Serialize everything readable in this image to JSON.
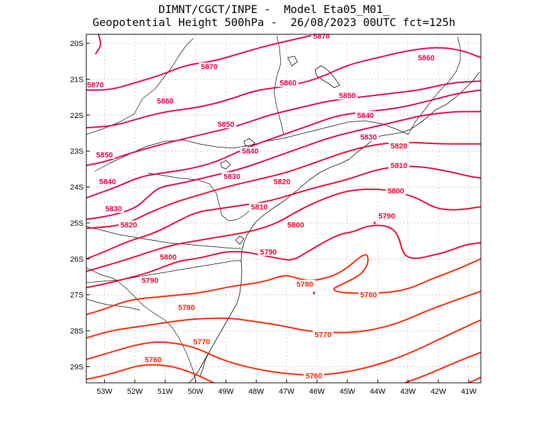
{
  "title": {
    "line1": "DIMNT/CGCT/INPE -  Model Eta05_M01_",
    "line2": "Geopotential Height 500hPa -  26/08/2023 00UTC fct=125h"
  },
  "axes": {
    "lat_labels": [
      "20S",
      "21S",
      "22S",
      "23S",
      "24S",
      "25S",
      "26S",
      "27S",
      "28S",
      "29S"
    ],
    "lon_labels": [
      "53W",
      "52W",
      "51W",
      "50W",
      "49W",
      "48W",
      "47W",
      "46W",
      "45W",
      "44W",
      "43W",
      "42W",
      "41W"
    ]
  },
  "colors": {
    "high": "#e6004c",
    "mid": "#f00030",
    "low": "#ff2200",
    "coast": "#000000",
    "grid": "#9a9a9a"
  },
  "chart_data": {
    "type": "contour",
    "variable": "Geopotential Height 500hPa",
    "lon_range": [
      -53.6,
      -40.6
    ],
    "lat_range": [
      -29.45,
      -19.75
    ],
    "grid": true,
    "levels": [
      5760,
      5770,
      5780,
      5790,
      5800,
      5810,
      5820,
      5830,
      5840,
      5850,
      5860,
      5870
    ],
    "contours": [
      {
        "level": 5870,
        "points": [
          [
            -53.6,
            -21.3
          ],
          [
            -52.8,
            -21.3
          ],
          [
            -52.0,
            -21.1
          ],
          [
            -51.2,
            -20.9
          ],
          [
            -50.3,
            -20.6
          ],
          [
            -49.4,
            -20.5
          ],
          [
            -48.6,
            -20.3
          ],
          [
            -47.8,
            -20.1
          ],
          [
            -46.8,
            -19.9
          ],
          [
            -46.0,
            -19.75
          ]
        ]
      },
      {
        "level": 5870,
        "points": [
          [
            -53.2,
            -19.75
          ],
          [
            -53.1,
            -20.05
          ],
          [
            -53.3,
            -20.3
          ]
        ]
      },
      {
        "level": 5860,
        "points": [
          [
            -53.6,
            -22.35
          ],
          [
            -52.7,
            -22.3
          ],
          [
            -51.9,
            -22.1
          ],
          [
            -51.0,
            -21.9
          ],
          [
            -50.0,
            -21.8
          ],
          [
            -49.0,
            -21.6
          ],
          [
            -48.0,
            -21.3
          ],
          [
            -47.0,
            -21.2
          ],
          [
            -46.0,
            -21.0
          ],
          [
            -45.0,
            -20.6
          ],
          [
            -44.0,
            -20.4
          ],
          [
            -43.0,
            -20.2
          ],
          [
            -42.0,
            -20.1
          ],
          [
            -41.2,
            -20.2
          ],
          [
            -40.6,
            -20.4
          ]
        ]
      },
      {
        "level": 5850,
        "points": [
          [
            -53.6,
            -23.4
          ],
          [
            -53.0,
            -23.3
          ],
          [
            -52.3,
            -23.1
          ],
          [
            -51.5,
            -22.9
          ],
          [
            -50.6,
            -22.7
          ],
          [
            -49.6,
            -22.5
          ],
          [
            -48.6,
            -22.3
          ],
          [
            -47.6,
            -22.0
          ],
          [
            -46.6,
            -21.8
          ],
          [
            -45.6,
            -21.6
          ],
          [
            -44.6,
            -21.5
          ],
          [
            -43.6,
            -21.4
          ],
          [
            -42.6,
            -21.3
          ],
          [
            -41.6,
            -21.1
          ],
          [
            -40.6,
            -21.05
          ]
        ]
      },
      {
        "level": 5840,
        "points": [
          [
            -53.6,
            -24.3
          ],
          [
            -52.6,
            -24.0
          ],
          [
            -51.8,
            -23.7
          ],
          [
            -51.0,
            -23.6
          ],
          [
            -50.2,
            -23.5
          ],
          [
            -49.3,
            -23.3
          ],
          [
            -48.3,
            -22.9
          ],
          [
            -47.3,
            -22.6
          ],
          [
            -46.3,
            -22.3
          ],
          [
            -45.3,
            -22.0
          ],
          [
            -44.3,
            -21.9
          ],
          [
            -43.3,
            -21.8
          ],
          [
            -42.3,
            -21.6
          ],
          [
            -41.4,
            -21.4
          ],
          [
            -40.6,
            -21.3
          ]
        ]
      },
      {
        "level": 5830,
        "points": [
          [
            -53.6,
            -24.9
          ],
          [
            -52.8,
            -24.8
          ],
          [
            -52.0,
            -24.6
          ],
          [
            -51.6,
            -24.3
          ],
          [
            -51.2,
            -24.0
          ],
          [
            -50.5,
            -23.9
          ],
          [
            -49.5,
            -23.7
          ],
          [
            -48.5,
            -23.5
          ],
          [
            -47.5,
            -23.2
          ],
          [
            -46.5,
            -22.9
          ],
          [
            -45.5,
            -22.6
          ],
          [
            -44.5,
            -22.4
          ],
          [
            -43.5,
            -22.2
          ],
          [
            -42.5,
            -22.0
          ],
          [
            -41.5,
            -21.9
          ],
          [
            -40.6,
            -21.9
          ]
        ]
      },
      {
        "level": 5820,
        "points": [
          [
            -53.6,
            -25.15
          ],
          [
            -52.8,
            -25.1
          ],
          [
            -52.2,
            -25.0
          ],
          [
            -51.5,
            -24.7
          ],
          [
            -50.6,
            -24.4
          ],
          [
            -49.8,
            -24.2
          ],
          [
            -49.0,
            -24.0
          ],
          [
            -48.0,
            -23.8
          ],
          [
            -47.0,
            -23.6
          ],
          [
            -46.0,
            -23.3
          ],
          [
            -45.0,
            -23.0
          ],
          [
            -44.0,
            -22.8
          ],
          [
            -43.0,
            -22.75
          ],
          [
            -42.0,
            -22.8
          ],
          [
            -41.0,
            -22.8
          ],
          [
            -40.6,
            -22.8
          ]
        ]
      },
      {
        "level": 5810,
        "points": [
          [
            -53.6,
            -26.0
          ],
          [
            -53.0,
            -25.8
          ],
          [
            -52.2,
            -25.5
          ],
          [
            -51.4,
            -25.3
          ],
          [
            -50.7,
            -25.0
          ],
          [
            -50.0,
            -24.7
          ],
          [
            -49.2,
            -24.6
          ],
          [
            -48.4,
            -24.5
          ],
          [
            -47.6,
            -24.4
          ],
          [
            -46.8,
            -24.2
          ],
          [
            -46.0,
            -24.0
          ],
          [
            -45.0,
            -23.8
          ],
          [
            -44.0,
            -23.5
          ],
          [
            -43.0,
            -23.4
          ],
          [
            -42.0,
            -23.5
          ],
          [
            -41.0,
            -23.7
          ],
          [
            -40.6,
            -23.75
          ]
        ]
      },
      {
        "level": 5800,
        "points": [
          [
            -53.6,
            -26.35
          ],
          [
            -53.0,
            -26.2
          ],
          [
            -52.2,
            -26.0
          ],
          [
            -51.5,
            -25.8
          ],
          [
            -50.7,
            -25.6
          ],
          [
            -50.0,
            -25.5
          ],
          [
            -49.3,
            -25.4
          ],
          [
            -48.6,
            -25.3
          ],
          [
            -48.0,
            -25.2
          ],
          [
            -47.3,
            -25.0
          ],
          [
            -46.5,
            -24.6
          ],
          [
            -45.7,
            -24.3
          ],
          [
            -45.0,
            -24.1
          ],
          [
            -44.2,
            -24.05
          ],
          [
            -43.5,
            -24.1
          ],
          [
            -42.7,
            -24.3
          ],
          [
            -42.1,
            -24.6
          ],
          [
            -41.4,
            -24.65
          ],
          [
            -40.6,
            -24.55
          ]
        ]
      },
      {
        "level": 5790,
        "points": [
          [
            -53.6,
            -26.8
          ],
          [
            -53.0,
            -26.7
          ],
          [
            -52.3,
            -26.55
          ],
          [
            -51.6,
            -26.4
          ],
          [
            -51.0,
            -26.2
          ],
          [
            -50.5,
            -26.05
          ],
          [
            -50.0,
            -26.0
          ],
          [
            -49.5,
            -25.9
          ],
          [
            -49.0,
            -25.8
          ],
          [
            -48.4,
            -25.8
          ],
          [
            -47.8,
            -25.9
          ],
          [
            -47.2,
            -26.0
          ],
          [
            -46.8,
            -26.05
          ],
          [
            -46.3,
            -25.8
          ],
          [
            -45.7,
            -25.5
          ],
          [
            -45.2,
            -25.3
          ],
          [
            -44.8,
            -25.25
          ],
          [
            -44.4,
            -25.1
          ],
          [
            -43.9,
            -25.05
          ],
          [
            -43.5,
            -25.15
          ],
          [
            -43.3,
            -25.4
          ],
          [
            -43.2,
            -25.75
          ],
          [
            -43.05,
            -25.95
          ],
          [
            -42.7,
            -26.0
          ],
          [
            -42.2,
            -25.9
          ],
          [
            -41.7,
            -25.8
          ],
          [
            -41.1,
            -25.6
          ],
          [
            -40.6,
            -25.55
          ]
        ]
      },
      {
        "level": 5780,
        "points": [
          [
            -53.6,
            -27.55
          ],
          [
            -53.0,
            -27.4
          ],
          [
            -52.4,
            -27.2
          ],
          [
            -51.8,
            -27.1
          ],
          [
            -51.1,
            -27.05
          ],
          [
            -50.5,
            -27.0
          ],
          [
            -49.9,
            -26.95
          ],
          [
            -49.3,
            -26.85
          ],
          [
            -48.7,
            -26.75
          ],
          [
            -48.2,
            -26.7
          ],
          [
            -47.6,
            -26.6
          ],
          [
            -47.1,
            -26.45
          ],
          [
            -46.8,
            -26.5
          ],
          [
            -46.4,
            -26.6
          ],
          [
            -46.1,
            -26.6
          ],
          [
            -45.8,
            -26.55
          ],
          [
            -45.4,
            -26.45
          ],
          [
            -45.0,
            -26.25
          ],
          [
            -44.6,
            -25.95
          ],
          [
            -44.35,
            -25.85
          ],
          [
            -44.3,
            -26.1
          ],
          [
            -44.5,
            -26.4
          ],
          [
            -44.9,
            -26.6
          ],
          [
            -45.3,
            -26.75
          ],
          [
            -45.5,
            -26.85
          ],
          [
            -45.2,
            -26.95
          ],
          [
            -44.5,
            -26.95
          ],
          [
            -43.8,
            -26.95
          ],
          [
            -43.0,
            -26.85
          ],
          [
            -42.2,
            -26.55
          ],
          [
            -41.4,
            -26.3
          ],
          [
            -40.6,
            -26.0
          ]
        ]
      },
      {
        "level": 5770,
        "points": [
          [
            -53.6,
            -28.2
          ],
          [
            -52.8,
            -28.0
          ],
          [
            -52.0,
            -27.9
          ],
          [
            -51.2,
            -27.8
          ],
          [
            -50.4,
            -27.7
          ],
          [
            -49.6,
            -27.65
          ],
          [
            -48.8,
            -27.65
          ],
          [
            -48.0,
            -27.75
          ],
          [
            -47.2,
            -27.85
          ],
          [
            -46.4,
            -28.0
          ],
          [
            -45.6,
            -28.05
          ],
          [
            -44.8,
            -28.05
          ],
          [
            -44.0,
            -27.95
          ],
          [
            -43.2,
            -27.75
          ],
          [
            -42.4,
            -27.45
          ],
          [
            -41.6,
            -27.2
          ],
          [
            -40.6,
            -26.9
          ]
        ]
      },
      {
        "level": 5760,
        "points": [
          [
            -53.6,
            -28.8
          ],
          [
            -52.8,
            -28.6
          ],
          [
            -52.0,
            -28.4
          ],
          [
            -51.3,
            -28.3
          ],
          [
            -50.6,
            -28.35
          ],
          [
            -49.9,
            -28.5
          ],
          [
            -49.3,
            -28.75
          ],
          [
            -48.6,
            -28.95
          ],
          [
            -47.8,
            -29.1
          ],
          [
            -47.0,
            -29.2
          ],
          [
            -46.0,
            -29.25
          ],
          [
            -45.0,
            -29.15
          ],
          [
            -44.0,
            -28.95
          ],
          [
            -43.0,
            -28.65
          ],
          [
            -42.0,
            -28.25
          ],
          [
            -41.0,
            -27.85
          ],
          [
            -40.6,
            -27.7
          ]
        ]
      },
      {
        "level": 5760,
        "points": [
          [
            -53.6,
            -29.35
          ],
          [
            -53.0,
            -29.25
          ],
          [
            -52.4,
            -29.1
          ],
          [
            -51.8,
            -28.95
          ],
          [
            -51.1,
            -28.95
          ],
          [
            -50.5,
            -29.05
          ],
          [
            -49.9,
            -29.25
          ],
          [
            -49.4,
            -29.45
          ]
        ]
      },
      {
        "level": 5750,
        "points": [
          [
            -43.1,
            -29.45
          ],
          [
            -42.3,
            -29.2
          ],
          [
            -41.5,
            -28.9
          ],
          [
            -40.6,
            -28.6
          ]
        ]
      },
      {
        "level": 5750,
        "points": [
          [
            -41.0,
            -29.45
          ],
          [
            -40.6,
            -29.3
          ]
        ]
      }
    ],
    "labels": [
      {
        "text": "5870",
        "lon": -45.85,
        "lat": -19.8
      },
      {
        "text": "5870",
        "lon": -49.55,
        "lat": -20.65
      },
      {
        "text": "5870",
        "lon": -53.3,
        "lat": -21.15
      },
      {
        "text": "5860",
        "lon": -42.4,
        "lat": -20.4
      },
      {
        "text": "5860",
        "lon": -46.95,
        "lat": -21.1
      },
      {
        "text": "5860",
        "lon": -51.0,
        "lat": -21.6
      },
      {
        "text": "5850",
        "lon": -45.0,
        "lat": -21.45
      },
      {
        "text": "5850",
        "lon": -49.0,
        "lat": -22.25
      },
      {
        "text": "5850",
        "lon": -53.0,
        "lat": -23.1
      },
      {
        "text": "5840",
        "lon": -44.4,
        "lat": -22.0
      },
      {
        "text": "5840",
        "lon": -48.2,
        "lat": -23.0
      },
      {
        "text": "5840",
        "lon": -52.9,
        "lat": -23.85
      },
      {
        "text": "5830",
        "lon": -44.3,
        "lat": -22.6
      },
      {
        "text": "5830",
        "lon": -48.8,
        "lat": -23.7
      },
      {
        "text": "5830",
        "lon": -52.7,
        "lat": -24.6
      },
      {
        "text": "5820",
        "lon": -43.3,
        "lat": -22.85
      },
      {
        "text": "5820",
        "lon": -47.15,
        "lat": -23.85
      },
      {
        "text": "5820",
        "lon": -52.2,
        "lat": -25.05
      },
      {
        "text": "5810",
        "lon": -43.3,
        "lat": -23.4
      },
      {
        "text": "5810",
        "lon": -47.9,
        "lat": -24.55
      },
      {
        "text": "5800",
        "lon": -43.4,
        "lat": -24.1
      },
      {
        "text": "5800",
        "lon": -46.7,
        "lat": -25.05
      },
      {
        "text": "5800",
        "lon": -50.9,
        "lat": -25.95
      },
      {
        "text": "5790",
        "lon": -43.7,
        "lat": -24.8
      },
      {
        "text": "5790",
        "lon": -47.6,
        "lat": -25.8
      },
      {
        "text": "5790",
        "lon": -51.5,
        "lat": -26.6
      },
      {
        "text": "5780",
        "lon": -46.4,
        "lat": -26.7
      },
      {
        "text": "5780",
        "lon": -44.3,
        "lat": -27.0
      },
      {
        "text": "5780",
        "lon": -50.3,
        "lat": -27.35
      },
      {
        "text": "5770",
        "lon": -45.8,
        "lat": -28.1
      },
      {
        "text": "5770",
        "lon": -49.8,
        "lat": -28.3
      },
      {
        "text": "5760",
        "lon": -51.4,
        "lat": -28.8
      },
      {
        "text": "5760",
        "lon": -46.1,
        "lat": -29.25
      }
    ],
    "markers": [
      {
        "lon": -44.1,
        "lat": -25.0
      },
      {
        "lon": -46.1,
        "lat": -26.95
      }
    ]
  }
}
